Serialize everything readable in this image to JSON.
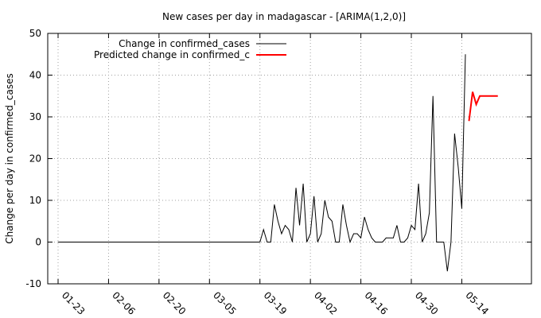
{
  "chart_data": {
    "type": "line",
    "title": "New cases per day in madagascar -  [ARIMA(1,2,0)]",
    "xlabel": "",
    "ylabel": "Change per day in confirmed_cases",
    "x_tick_labels": [
      "01-23",
      "02-06",
      "02-20",
      "03-05",
      "03-19",
      "04-02",
      "04-16",
      "04-30",
      "05-14"
    ],
    "y_tick_labels": [
      "-10",
      "0",
      "10",
      "20",
      "30",
      "40",
      "50"
    ],
    "ylim": [
      -10,
      50
    ],
    "xlim": [
      "01-23",
      "06-01"
    ],
    "grid": true,
    "legend_position": "top-left",
    "series": [
      {
        "name": "Change in confirmed_cases",
        "color": "#000000",
        "x": [
          "01-23",
          "01-24",
          "01-25",
          "01-26",
          "01-27",
          "01-28",
          "01-29",
          "01-30",
          "01-31",
          "02-01",
          "02-02",
          "02-03",
          "02-04",
          "02-05",
          "02-06",
          "02-07",
          "02-08",
          "02-09",
          "02-10",
          "02-11",
          "02-12",
          "02-13",
          "02-14",
          "02-15",
          "02-16",
          "02-17",
          "02-18",
          "02-19",
          "02-20",
          "02-21",
          "02-22",
          "02-23",
          "02-24",
          "02-25",
          "02-26",
          "02-27",
          "02-28",
          "02-29",
          "03-01",
          "03-02",
          "03-03",
          "03-04",
          "03-05",
          "03-06",
          "03-07",
          "03-08",
          "03-09",
          "03-10",
          "03-11",
          "03-12",
          "03-13",
          "03-14",
          "03-15",
          "03-16",
          "03-17",
          "03-18",
          "03-19",
          "03-20",
          "03-21",
          "03-22",
          "03-23",
          "03-24",
          "03-25",
          "03-26",
          "03-27",
          "03-28",
          "03-29",
          "03-30",
          "03-31",
          "04-01",
          "04-02",
          "04-03",
          "04-04",
          "04-05",
          "04-06",
          "04-07",
          "04-08",
          "04-09",
          "04-10",
          "04-11",
          "04-12",
          "04-13",
          "04-14",
          "04-15",
          "04-16",
          "04-17",
          "04-18",
          "04-19",
          "04-20",
          "04-21",
          "04-22",
          "04-23",
          "04-24",
          "04-25",
          "04-26",
          "04-27",
          "04-28",
          "04-29",
          "04-30",
          "05-01",
          "05-02",
          "05-03",
          "05-04",
          "05-05",
          "05-06",
          "05-07",
          "05-08",
          "05-09",
          "05-10",
          "05-11",
          "05-12",
          "05-13",
          "05-14",
          "05-15"
        ],
        "values": [
          0,
          0,
          0,
          0,
          0,
          0,
          0,
          0,
          0,
          0,
          0,
          0,
          0,
          0,
          0,
          0,
          0,
          0,
          0,
          0,
          0,
          0,
          0,
          0,
          0,
          0,
          0,
          0,
          0,
          0,
          0,
          0,
          0,
          0,
          0,
          0,
          0,
          0,
          0,
          0,
          0,
          0,
          0,
          0,
          0,
          0,
          0,
          0,
          0,
          0,
          0,
          0,
          0,
          0,
          0,
          0,
          0,
          3,
          0,
          0,
          9,
          5,
          2,
          4,
          3,
          0,
          13,
          4,
          14,
          0,
          2,
          11,
          0,
          2,
          10,
          6,
          5,
          0,
          0,
          9,
          4,
          0,
          2,
          2,
          1,
          6,
          3,
          1,
          0,
          0,
          0,
          1,
          1,
          1,
          4,
          0,
          0,
          1,
          4,
          3,
          14,
          0,
          2,
          7,
          35,
          0,
          0,
          0,
          -7,
          0,
          26,
          18,
          8,
          45
        ]
      },
      {
        "name": "Predicted change in confirmed_c",
        "color": "#ff0000",
        "x": [
          "05-16",
          "05-17",
          "05-18",
          "05-19",
          "05-20",
          "05-21",
          "05-22",
          "05-23",
          "05-24"
        ],
        "values": [
          29,
          36,
          33,
          35,
          35,
          35,
          35,
          35,
          35
        ]
      }
    ]
  }
}
